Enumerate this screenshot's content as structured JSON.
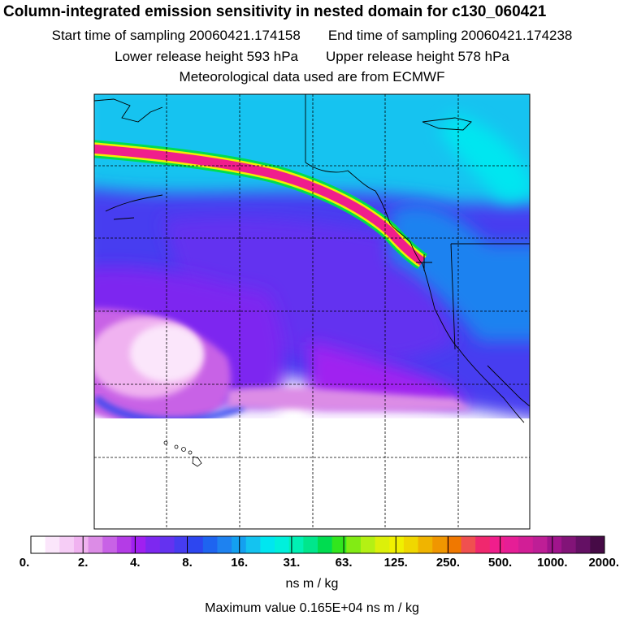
{
  "header": {
    "title": "Column-integrated emission sensitivity in nested domain for c130_060421",
    "start_label": "Start time of sampling 20060421.174158",
    "end_label": "End time of sampling 20060421.174238",
    "lower_label": "Lower release height  593 hPa",
    "upper_label": "Upper release height  578 hPa",
    "met_label": "Meteorological data used are from ECMWF"
  },
  "colorbar": {
    "tick_labels": [
      "0.",
      "2.",
      "4.",
      "8.",
      "16.",
      "31.",
      "63.",
      "125.",
      "250.",
      "500.",
      "1000.",
      "2000."
    ],
    "colors": [
      "#ffffff",
      "#fbe6fb",
      "#f6cdf6",
      "#f0b2f0",
      "#dc8ce6",
      "#c862e6",
      "#b43ce6",
      "#a020f0",
      "#7d28f0",
      "#6432f0",
      "#463cf0",
      "#2d46f0",
      "#1e64f0",
      "#1e82f0",
      "#14a0f0",
      "#14c3f0",
      "#00e6f0",
      "#00f0dc",
      "#00f0b4",
      "#00e68c",
      "#00dc50",
      "#32e61e",
      "#82eb14",
      "#b4f014",
      "#dcf00a",
      "#f0f000",
      "#f0d700",
      "#f0b400",
      "#f09600",
      "#f07800",
      "#f05050",
      "#f0286e",
      "#f01e8c",
      "#e61e96",
      "#d21e96",
      "#be1e96",
      "#a0148c",
      "#821478",
      "#641064",
      "#460a46"
    ],
    "units": "ns m / kg"
  },
  "footer": {
    "max_value": "Maximum value  0.165E+04 ns m / kg"
  },
  "map": {
    "grid_lines": "dashed",
    "release_marker": "cross"
  }
}
